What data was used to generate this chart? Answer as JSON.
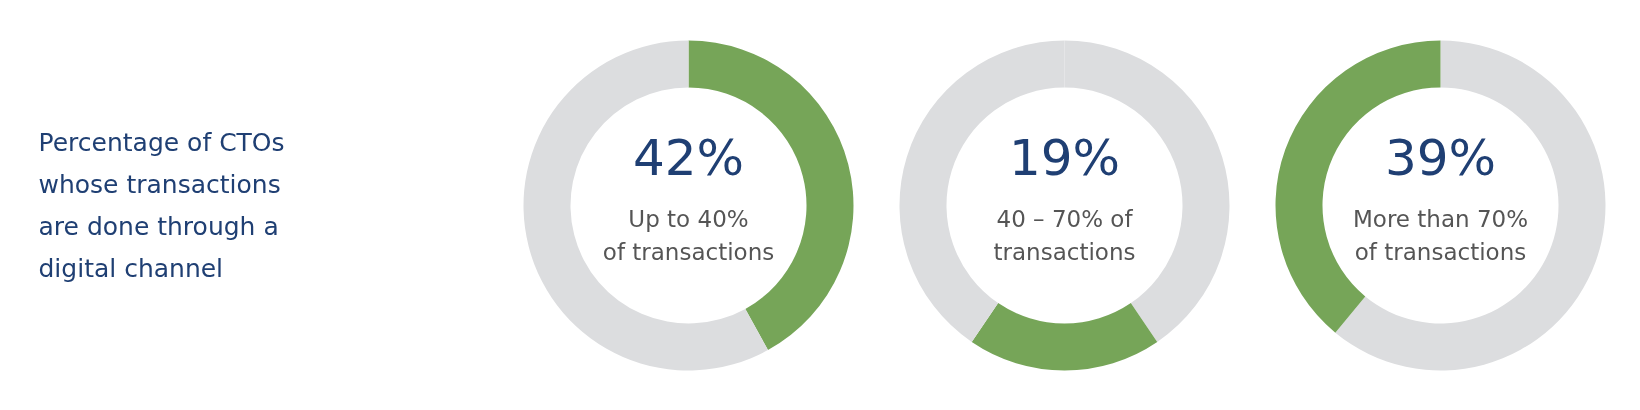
{
  "chart_data": [
    {
      "type": "other",
      "title": "Percentage of CTOs\nwhose transactions\nare done through a\ndigital channel"
    },
    {
      "type": "donut",
      "categories": [
        "Up to 40%\nof transactions",
        null
      ],
      "values": [
        42,
        58
      ],
      "colors": [
        "#76a558",
        "#dcdddf"
      ],
      "value_labels": [
        "42%",
        null
      ]
    },
    {
      "type": "donut",
      "categories": [
        null,
        "40 – 70% of\ntransactions",
        null
      ],
      "values": [
        40.5,
        19,
        40.5
      ],
      "colors": [
        "#dcdddf",
        "#76a558",
        "#dcdddf"
      ],
      "value_labels": [
        null,
        "19%",
        null
      ]
    },
    {
      "type": "donut",
      "categories": [
        null,
        "More than 70%\nof transactions"
      ],
      "values": [
        61,
        39
      ],
      "colors": [
        "#dcdddf",
        "#76a558"
      ],
      "value_labels": [
        null,
        "39%"
      ]
    }
  ]
}
